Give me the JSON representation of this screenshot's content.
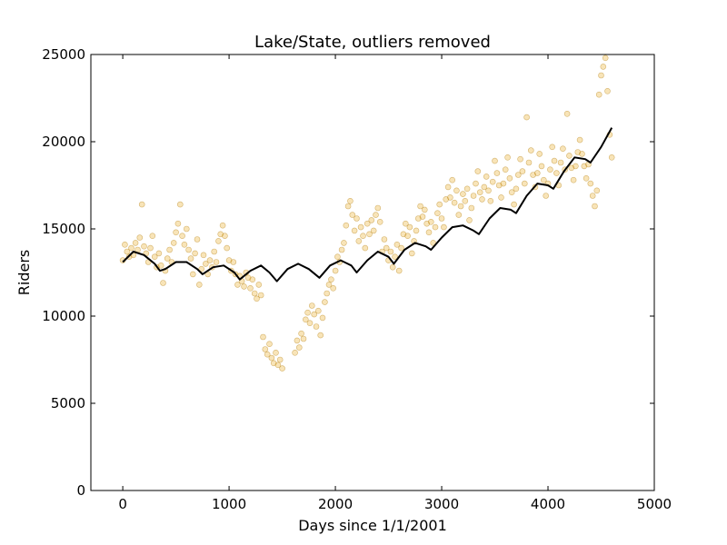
{
  "chart_data": {
    "type": "scatter",
    "title": "Lake/State, outliers removed",
    "xlabel": "Days since 1/1/2001",
    "ylabel": "Riders",
    "xlim": [
      -300,
      5000
    ],
    "ylim": [
      0,
      25000
    ],
    "xticks": [
      0,
      1000,
      2000,
      3000,
      4000,
      5000
    ],
    "yticks": [
      0,
      5000,
      10000,
      15000,
      20000,
      25000
    ],
    "grid": false,
    "colors": {
      "points": "#e69f00",
      "trend": "#000000"
    },
    "series": [
      {
        "kind": "scatter",
        "approximate": true,
        "points": [
          [
            0,
            13200
          ],
          [
            20,
            14100
          ],
          [
            40,
            13700
          ],
          [
            60,
            13400
          ],
          [
            80,
            13900
          ],
          [
            100,
            13500
          ],
          [
            120,
            14200
          ],
          [
            140,
            13800
          ],
          [
            160,
            14500
          ],
          [
            180,
            16400
          ],
          [
            200,
            14000
          ],
          [
            220,
            13600
          ],
          [
            240,
            13100
          ],
          [
            260,
            13900
          ],
          [
            280,
            14600
          ],
          [
            300,
            13400
          ],
          [
            320,
            12800
          ],
          [
            340,
            13600
          ],
          [
            360,
            12900
          ],
          [
            380,
            11900
          ],
          [
            400,
            12600
          ],
          [
            420,
            13300
          ],
          [
            440,
            13800
          ],
          [
            460,
            13100
          ],
          [
            480,
            14200
          ],
          [
            500,
            14800
          ],
          [
            520,
            15300
          ],
          [
            540,
            16400
          ],
          [
            560,
            14600
          ],
          [
            580,
            14100
          ],
          [
            600,
            15000
          ],
          [
            620,
            13800
          ],
          [
            640,
            13300
          ],
          [
            660,
            12400
          ],
          [
            680,
            13600
          ],
          [
            700,
            14400
          ],
          [
            720,
            11800
          ],
          [
            740,
            12700
          ],
          [
            760,
            13500
          ],
          [
            780,
            13000
          ],
          [
            800,
            12400
          ],
          [
            820,
            13200
          ],
          [
            840,
            12800
          ],
          [
            860,
            13700
          ],
          [
            880,
            13100
          ],
          [
            900,
            14300
          ],
          [
            920,
            14700
          ],
          [
            940,
            15200
          ],
          [
            960,
            14600
          ],
          [
            980,
            13900
          ],
          [
            1000,
            13200
          ],
          [
            1020,
            12600
          ],
          [
            1040,
            13100
          ],
          [
            1060,
            12400
          ],
          [
            1080,
            11800
          ],
          [
            1100,
            12300
          ],
          [
            1120,
            12000
          ],
          [
            1140,
            11700
          ],
          [
            1160,
            12500
          ],
          [
            1180,
            12200
          ],
          [
            1200,
            11600
          ],
          [
            1220,
            12100
          ],
          [
            1240,
            11300
          ],
          [
            1260,
            11000
          ],
          [
            1280,
            11800
          ],
          [
            1300,
            11200
          ],
          [
            1320,
            8800
          ],
          [
            1340,
            8100
          ],
          [
            1360,
            7800
          ],
          [
            1380,
            8400
          ],
          [
            1400,
            7600
          ],
          [
            1420,
            7300
          ],
          [
            1440,
            7900
          ],
          [
            1460,
            7200
          ],
          [
            1480,
            7500
          ],
          [
            1500,
            7000
          ],
          [
            1620,
            7900
          ],
          [
            1640,
            8600
          ],
          [
            1660,
            8200
          ],
          [
            1680,
            9000
          ],
          [
            1700,
            8700
          ],
          [
            1720,
            9800
          ],
          [
            1740,
            10200
          ],
          [
            1760,
            9600
          ],
          [
            1780,
            10600
          ],
          [
            1800,
            10100
          ],
          [
            1820,
            9400
          ],
          [
            1840,
            10300
          ],
          [
            1860,
            8900
          ],
          [
            1880,
            9900
          ],
          [
            1900,
            10800
          ],
          [
            1920,
            11300
          ],
          [
            1940,
            11800
          ],
          [
            1960,
            12100
          ],
          [
            1980,
            11600
          ],
          [
            2000,
            12600
          ],
          [
            2020,
            13400
          ],
          [
            2040,
            13100
          ],
          [
            2060,
            13800
          ],
          [
            2080,
            14200
          ],
          [
            2100,
            15200
          ],
          [
            2120,
            16300
          ],
          [
            2140,
            16600
          ],
          [
            2160,
            15800
          ],
          [
            2180,
            14900
          ],
          [
            2200,
            15600
          ],
          [
            2220,
            14300
          ],
          [
            2240,
            15100
          ],
          [
            2260,
            14600
          ],
          [
            2280,
            13900
          ],
          [
            2300,
            15300
          ],
          [
            2320,
            14700
          ],
          [
            2340,
            15500
          ],
          [
            2360,
            14900
          ],
          [
            2380,
            15800
          ],
          [
            2400,
            16200
          ],
          [
            2420,
            15400
          ],
          [
            2440,
            13700
          ],
          [
            2460,
            14400
          ],
          [
            2480,
            13900
          ],
          [
            2500,
            13200
          ],
          [
            2520,
            13700
          ],
          [
            2540,
            12800
          ],
          [
            2560,
            13400
          ],
          [
            2580,
            14100
          ],
          [
            2600,
            12600
          ],
          [
            2620,
            13900
          ],
          [
            2640,
            14700
          ],
          [
            2660,
            15300
          ],
          [
            2680,
            14600
          ],
          [
            2700,
            15100
          ],
          [
            2720,
            13600
          ],
          [
            2740,
            14300
          ],
          [
            2760,
            14900
          ],
          [
            2780,
            15600
          ],
          [
            2800,
            16300
          ],
          [
            2820,
            15700
          ],
          [
            2840,
            16100
          ],
          [
            2860,
            15300
          ],
          [
            2880,
            14800
          ],
          [
            2900,
            15400
          ],
          [
            2920,
            14200
          ],
          [
            2940,
            15100
          ],
          [
            2960,
            15900
          ],
          [
            2980,
            16400
          ],
          [
            3000,
            15600
          ],
          [
            3020,
            15100
          ],
          [
            3040,
            16700
          ],
          [
            3060,
            17400
          ],
          [
            3080,
            16800
          ],
          [
            3100,
            17800
          ],
          [
            3120,
            16500
          ],
          [
            3140,
            17200
          ],
          [
            3160,
            15800
          ],
          [
            3180,
            16300
          ],
          [
            3200,
            17000
          ],
          [
            3220,
            16600
          ],
          [
            3240,
            17300
          ],
          [
            3260,
            15500
          ],
          [
            3280,
            16200
          ],
          [
            3300,
            16900
          ],
          [
            3320,
            17600
          ],
          [
            3340,
            18300
          ],
          [
            3360,
            17100
          ],
          [
            3380,
            16700
          ],
          [
            3400,
            17400
          ],
          [
            3420,
            18000
          ],
          [
            3440,
            17200
          ],
          [
            3460,
            16600
          ],
          [
            3480,
            17700
          ],
          [
            3500,
            18900
          ],
          [
            3520,
            18200
          ],
          [
            3540,
            17500
          ],
          [
            3560,
            16800
          ],
          [
            3580,
            17600
          ],
          [
            3600,
            18400
          ],
          [
            3620,
            19100
          ],
          [
            3640,
            17900
          ],
          [
            3660,
            17100
          ],
          [
            3680,
            16400
          ],
          [
            3700,
            17300
          ],
          [
            3720,
            18100
          ],
          [
            3740,
            19000
          ],
          [
            3760,
            18300
          ],
          [
            3780,
            17600
          ],
          [
            3800,
            21400
          ],
          [
            3820,
            18800
          ],
          [
            3840,
            19500
          ],
          [
            3860,
            18100
          ],
          [
            3880,
            17400
          ],
          [
            3900,
            18200
          ],
          [
            3920,
            19300
          ],
          [
            3940,
            18600
          ],
          [
            3960,
            17800
          ],
          [
            3980,
            16900
          ],
          [
            4000,
            17600
          ],
          [
            4020,
            18400
          ],
          [
            4040,
            19700
          ],
          [
            4060,
            18900
          ],
          [
            4080,
            18200
          ],
          [
            4100,
            17500
          ],
          [
            4120,
            18800
          ],
          [
            4140,
            19600
          ],
          [
            4160,
            18400
          ],
          [
            4180,
            21600
          ],
          [
            4200,
            19200
          ],
          [
            4220,
            18500
          ],
          [
            4240,
            17800
          ],
          [
            4260,
            18600
          ],
          [
            4280,
            19400
          ],
          [
            4300,
            20100
          ],
          [
            4320,
            19300
          ],
          [
            4340,
            18600
          ],
          [
            4360,
            17900
          ],
          [
            4380,
            18700
          ],
          [
            4400,
            17600
          ],
          [
            4420,
            16900
          ],
          [
            4440,
            16300
          ],
          [
            4460,
            17200
          ],
          [
            4480,
            22700
          ],
          [
            4500,
            23800
          ],
          [
            4520,
            24300
          ],
          [
            4540,
            24800
          ],
          [
            4560,
            22900
          ],
          [
            4580,
            20400
          ],
          [
            4600,
            19100
          ]
        ]
      },
      {
        "kind": "line",
        "approximate": true,
        "points": [
          [
            0,
            13100
          ],
          [
            100,
            13700
          ],
          [
            200,
            13500
          ],
          [
            300,
            13000
          ],
          [
            350,
            12600
          ],
          [
            400,
            12700
          ],
          [
            500,
            13100
          ],
          [
            600,
            13100
          ],
          [
            700,
            12700
          ],
          [
            750,
            12400
          ],
          [
            850,
            12800
          ],
          [
            950,
            12900
          ],
          [
            1050,
            12500
          ],
          [
            1100,
            12100
          ],
          [
            1200,
            12600
          ],
          [
            1300,
            12900
          ],
          [
            1380,
            12500
          ],
          [
            1450,
            12000
          ],
          [
            1550,
            12700
          ],
          [
            1650,
            13000
          ],
          [
            1750,
            12700
          ],
          [
            1850,
            12200
          ],
          [
            1950,
            12900
          ],
          [
            2050,
            13200
          ],
          [
            2150,
            12900
          ],
          [
            2200,
            12500
          ],
          [
            2300,
            13200
          ],
          [
            2400,
            13700
          ],
          [
            2500,
            13400
          ],
          [
            2550,
            13000
          ],
          [
            2650,
            13800
          ],
          [
            2750,
            14200
          ],
          [
            2850,
            14000
          ],
          [
            2900,
            13800
          ],
          [
            3000,
            14500
          ],
          [
            3100,
            15100
          ],
          [
            3200,
            15200
          ],
          [
            3300,
            14900
          ],
          [
            3350,
            14700
          ],
          [
            3450,
            15600
          ],
          [
            3550,
            16200
          ],
          [
            3650,
            16100
          ],
          [
            3700,
            15900
          ],
          [
            3800,
            16900
          ],
          [
            3900,
            17600
          ],
          [
            4000,
            17500
          ],
          [
            4050,
            17300
          ],
          [
            4150,
            18300
          ],
          [
            4250,
            19100
          ],
          [
            4350,
            19000
          ],
          [
            4400,
            18800
          ],
          [
            4500,
            19700
          ],
          [
            4600,
            20800
          ]
        ]
      }
    ]
  }
}
